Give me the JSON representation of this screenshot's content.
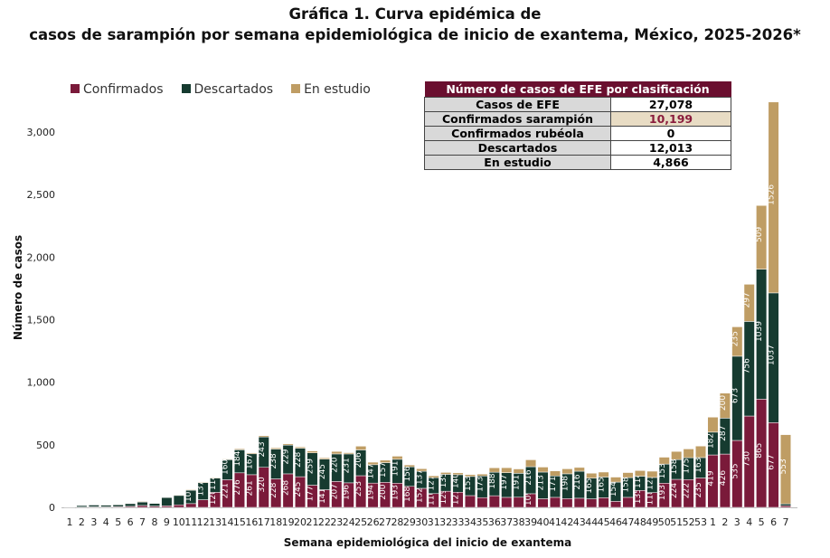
{
  "title_line1": "Gráfica 1. Curva epidémica de",
  "title_line2": "casos de sarampión por semana epidemiológica de inicio de exantema, México, 2025-2026*",
  "summary_table": {
    "header": "Número de casos de EFE por clasificación",
    "rows": [
      {
        "label": "Casos de EFE",
        "value": "27,078"
      },
      {
        "label": "Confirmados sarampión",
        "value": "10,199",
        "highlight": true
      },
      {
        "label": "Confirmados rubéola",
        "value": "0"
      },
      {
        "label": "Descartados",
        "value": "12,013"
      },
      {
        "label": "En estudio",
        "value": "4,866"
      }
    ]
  },
  "colors": {
    "confirmados": "#7a1a3a",
    "descartados": "#163b30",
    "en_estudio": "#bf9d64",
    "table_header": "#6a0f2f",
    "highlight_bg": "#e8dcc4",
    "highlight_text": "#8a1c3c"
  },
  "chart_data": {
    "type": "bar",
    "stacked": true,
    "xlabel": "Semana epidemiológica del inicio de exantema",
    "ylabel": "Número de casos",
    "ylim": [
      0,
      3300
    ],
    "yticks": [
      0,
      500,
      1000,
      1500,
      2000,
      2500,
      3000
    ],
    "ytick_labels": [
      "0",
      "500",
      "1,000",
      "1,500",
      "2,000",
      "2,500",
      "3,000"
    ],
    "legend_position": "top-left",
    "categories": [
      "1",
      "2",
      "3",
      "4",
      "5",
      "6",
      "7",
      "8",
      "9",
      "10",
      "11",
      "12",
      "13",
      "14",
      "15",
      "16",
      "17",
      "18",
      "19",
      "20",
      "21",
      "22",
      "23",
      "24",
      "25",
      "26",
      "27",
      "28",
      "29",
      "30",
      "31",
      "32",
      "33",
      "34",
      "35",
      "36",
      "37",
      "38",
      "39",
      "40",
      "41",
      "42",
      "43",
      "44",
      "45",
      "46",
      "47",
      "48",
      "49",
      "50",
      "51",
      "52",
      "53",
      "1",
      "2",
      "3",
      "4",
      "5",
      "6",
      "7"
    ],
    "series": [
      {
        "name": "Confirmados",
        "values": [
          0,
          3,
          4,
          4,
          5,
          8,
          15,
          10,
          12,
          20,
          30,
          61,
          120,
          221,
          276,
          261,
          320,
          228,
          268,
          245,
          177,
          141,
          207,
          196,
          253,
          194,
          200,
          193,
          168,
          152,
          110,
          129,
          121,
          94,
          78,
          93,
          80,
          81,
          109,
          69,
          80,
          70,
          73,
          68,
          77,
          48,
          80,
          135,
          118,
          193,
          224,
          222,
          235,
          419,
          426,
          535,
          730,
          865,
          677,
          13
        ]
      },
      {
        "name": "Descartados",
        "values": [
          3,
          12,
          15,
          14,
          15,
          22,
          28,
          22,
          67,
          75,
          107,
          137,
          114,
          160,
          184,
          167,
          243,
          238,
          229,
          228,
          259,
          245,
          220,
          231,
          206,
          147,
          157,
          191,
          156,
          137,
          127,
          135,
          140,
          153,
          173,
          188,
          197,
          191,
          216,
          213,
          171,
          198,
          216,
          165,
          165,
          154,
          158,
          114,
          121,
          153,
          158,
          175,
          163,
          182,
          287,
          673,
          756,
          1039,
          1037,
          15
        ]
      },
      {
        "name": "En estudio",
        "values": [
          0,
          2,
          2,
          2,
          2,
          3,
          5,
          3,
          3,
          5,
          5,
          5,
          5,
          5,
          8,
          8,
          10,
          10,
          10,
          10,
          15,
          10,
          20,
          10,
          30,
          20,
          20,
          25,
          15,
          20,
          15,
          15,
          15,
          15,
          15,
          35,
          40,
          35,
          55,
          40,
          40,
          40,
          30,
          40,
          40,
          40,
          40,
          45,
          50,
          55,
          65,
          70,
          92,
          120,
          200,
          235,
          297,
          509,
          1526,
          553
        ]
      }
    ]
  }
}
